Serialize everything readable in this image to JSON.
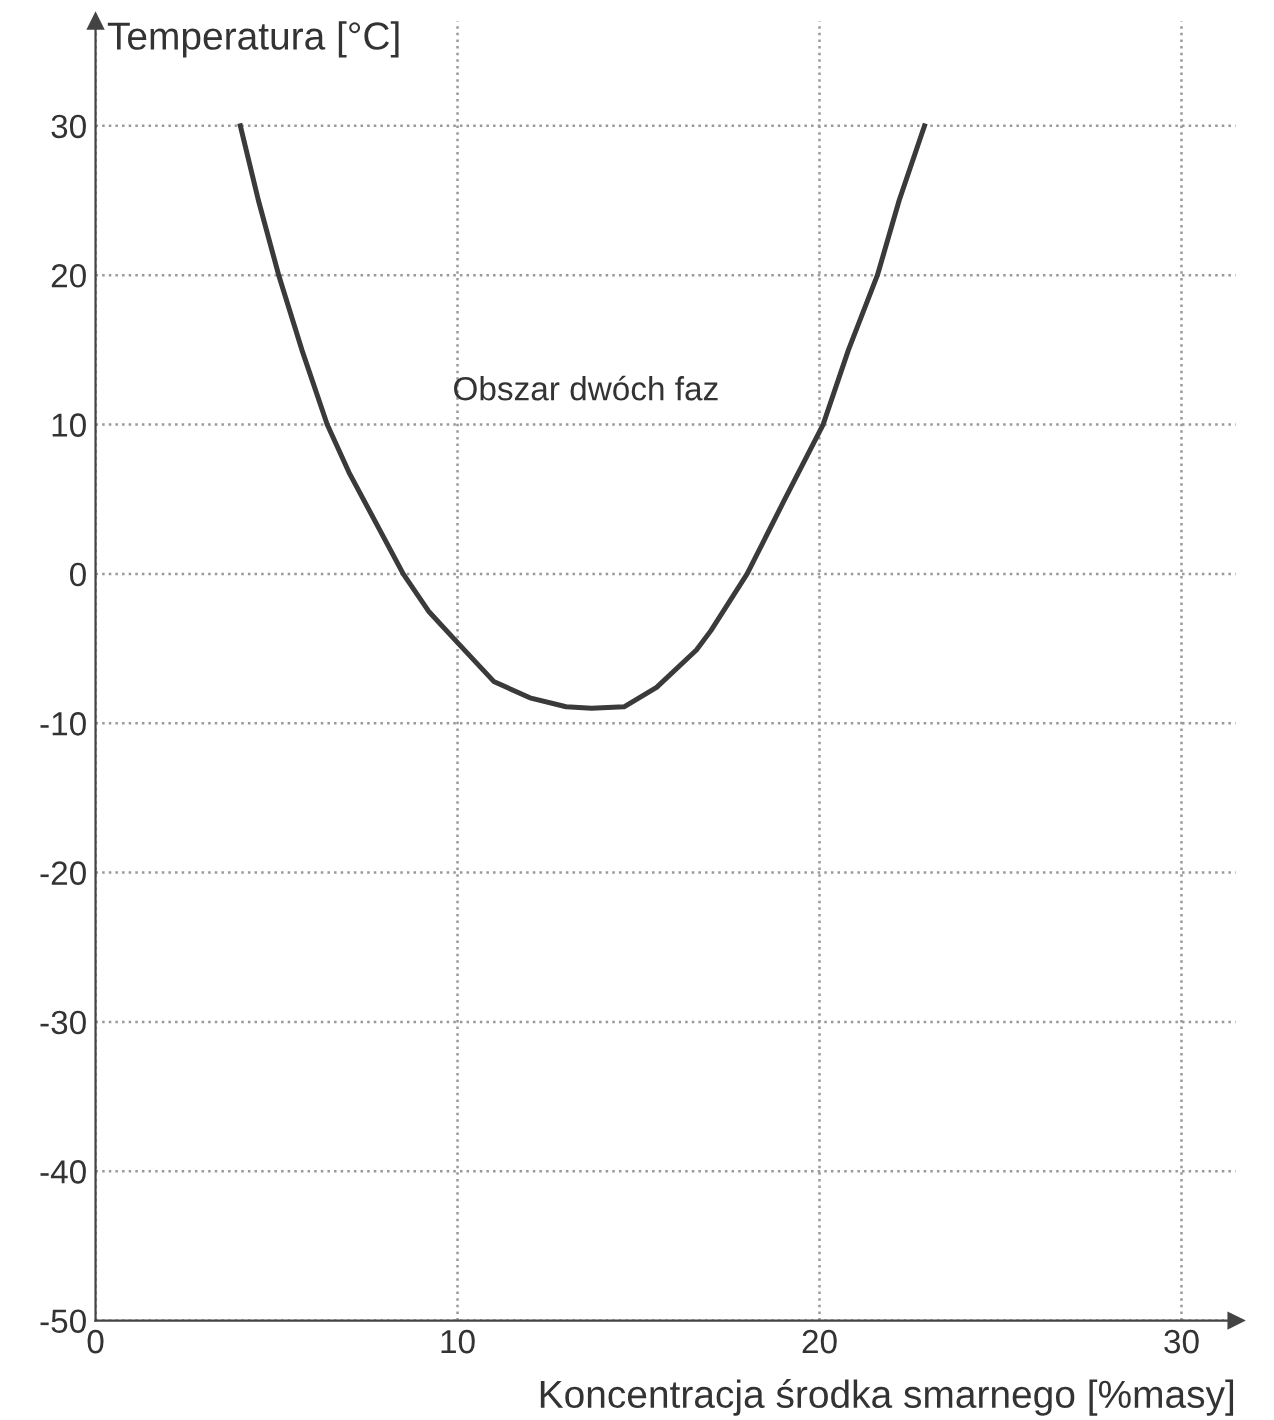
{
  "chart_data": {
    "type": "line",
    "xlabel": "Koncentracja środka smarnego [%masy]",
    "ylabel": "Temperatura [°C]",
    "x": [
      4.0,
      4.5,
      5.06,
      5.7,
      6.4,
      7.0,
      8.5,
      9.2,
      10.0,
      11.0,
      12.0,
      13.0,
      13.7,
      14.6,
      15.5,
      16.6,
      17.0,
      18.0,
      19.0,
      20.1,
      20.8,
      21.6,
      22.2,
      22.9
    ],
    "series": [
      {
        "color": "#3a3a3a",
        "values": [
          30,
          25,
          20,
          15,
          10,
          6.8,
          0,
          -2.5,
          -4.6,
          -7.2,
          -8.3,
          -8.9,
          -9.0,
          -8.9,
          -7.6,
          -5.1,
          -3.8,
          0,
          4.8,
          10,
          15,
          20,
          25,
          30
        ]
      }
    ],
    "xlim": [
      0,
      31.5
    ],
    "ylim": [
      -50,
      37
    ],
    "xticks": [
      0,
      10,
      20,
      30
    ],
    "yticks": [
      -50,
      -40,
      -30,
      -20,
      -10,
      0,
      10,
      20,
      30
    ],
    "grid": true,
    "line_style": "solid",
    "marker": "none",
    "annotations": [
      "Obszar dwóch faz"
    ]
  }
}
